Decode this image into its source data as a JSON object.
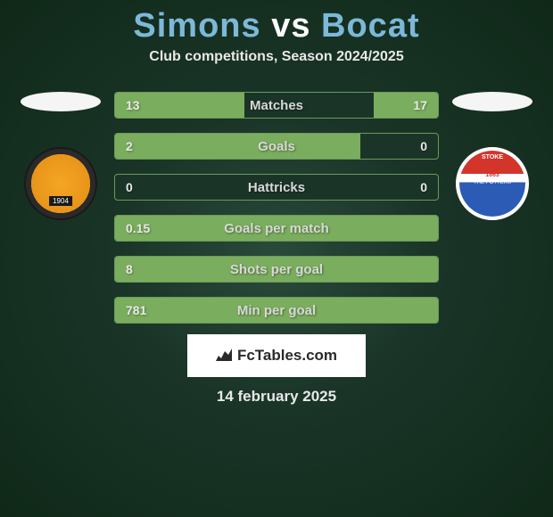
{
  "title": {
    "player1": "Simons",
    "vs": "vs",
    "player2": "Bocat"
  },
  "subtitle": "Club competitions, Season 2024/2025",
  "colors": {
    "bar_fill": "#7aad5d",
    "bar_border": "#6a9a5a",
    "bg_dark": "#1a3528"
  },
  "badges": {
    "left": {
      "year": "1904",
      "primary": "#f5a623",
      "secondary": "#2a2a2a"
    },
    "right": {
      "top": "STOKE",
      "mid": "CITY",
      "year": "1863",
      "bottom": "THE POTTERS",
      "red": "#d4352a",
      "blue": "#2b5bb5"
    }
  },
  "stats": [
    {
      "label": "Matches",
      "left_val": "13",
      "right_val": "17",
      "left_pct": 40,
      "right_pct": 20
    },
    {
      "label": "Goals",
      "left_val": "2",
      "right_val": "0",
      "left_pct": 76,
      "right_pct": 0
    },
    {
      "label": "Hattricks",
      "left_val": "0",
      "right_val": "0",
      "left_pct": 0,
      "right_pct": 0
    },
    {
      "label": "Goals per match",
      "left_val": "0.15",
      "right_val": "",
      "left_pct": 100,
      "right_pct": 0
    },
    {
      "label": "Shots per goal",
      "left_val": "8",
      "right_val": "",
      "left_pct": 100,
      "right_pct": 0
    },
    {
      "label": "Min per goal",
      "left_val": "781",
      "right_val": "",
      "left_pct": 100,
      "right_pct": 0
    }
  ],
  "footer": {
    "brand": "FcTables.com"
  },
  "date": "14 february 2025"
}
